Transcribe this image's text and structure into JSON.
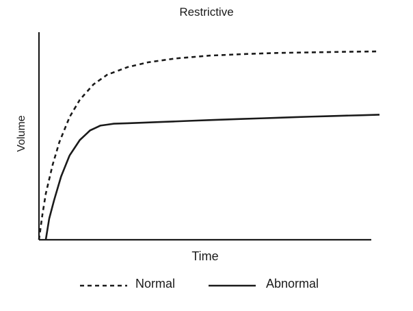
{
  "chart_data": {
    "type": "line",
    "title": "Restrictive",
    "xlabel": "Time",
    "ylabel": "Volume",
    "xlim": [
      0,
      10
    ],
    "ylim": [
      0,
      10
    ],
    "grid": false,
    "legend_position": "bottom-center",
    "series": [
      {
        "name": "Normal",
        "line_style": "dashed",
        "color": "#1a1a1a",
        "x": [
          0,
          0.1,
          0.2,
          0.4,
          0.6,
          0.9,
          1.2,
          1.6,
          2.0,
          2.6,
          3.2,
          4.0,
          5.0,
          6.0,
          7.0,
          8.0,
          9.0,
          10.0
        ],
        "y": [
          0.0,
          1.3,
          2.4,
          3.9,
          5.1,
          6.4,
          7.3,
          8.1,
          8.6,
          9.0,
          9.25,
          9.45,
          9.6,
          9.68,
          9.74,
          9.77,
          9.8,
          9.82
        ]
      },
      {
        "name": "Abnormal",
        "line_style": "solid",
        "color": "#1a1a1a",
        "x": [
          0.2,
          0.3,
          0.45,
          0.65,
          0.9,
          1.2,
          1.5,
          1.8,
          2.2,
          3.0,
          4.0,
          5.0,
          6.0,
          7.0,
          8.0,
          9.0,
          10.0
        ],
        "y": [
          0.0,
          1.1,
          2.1,
          3.3,
          4.4,
          5.2,
          5.7,
          5.95,
          6.05,
          6.1,
          6.17,
          6.24,
          6.3,
          6.36,
          6.42,
          6.47,
          6.52
        ]
      }
    ]
  }
}
